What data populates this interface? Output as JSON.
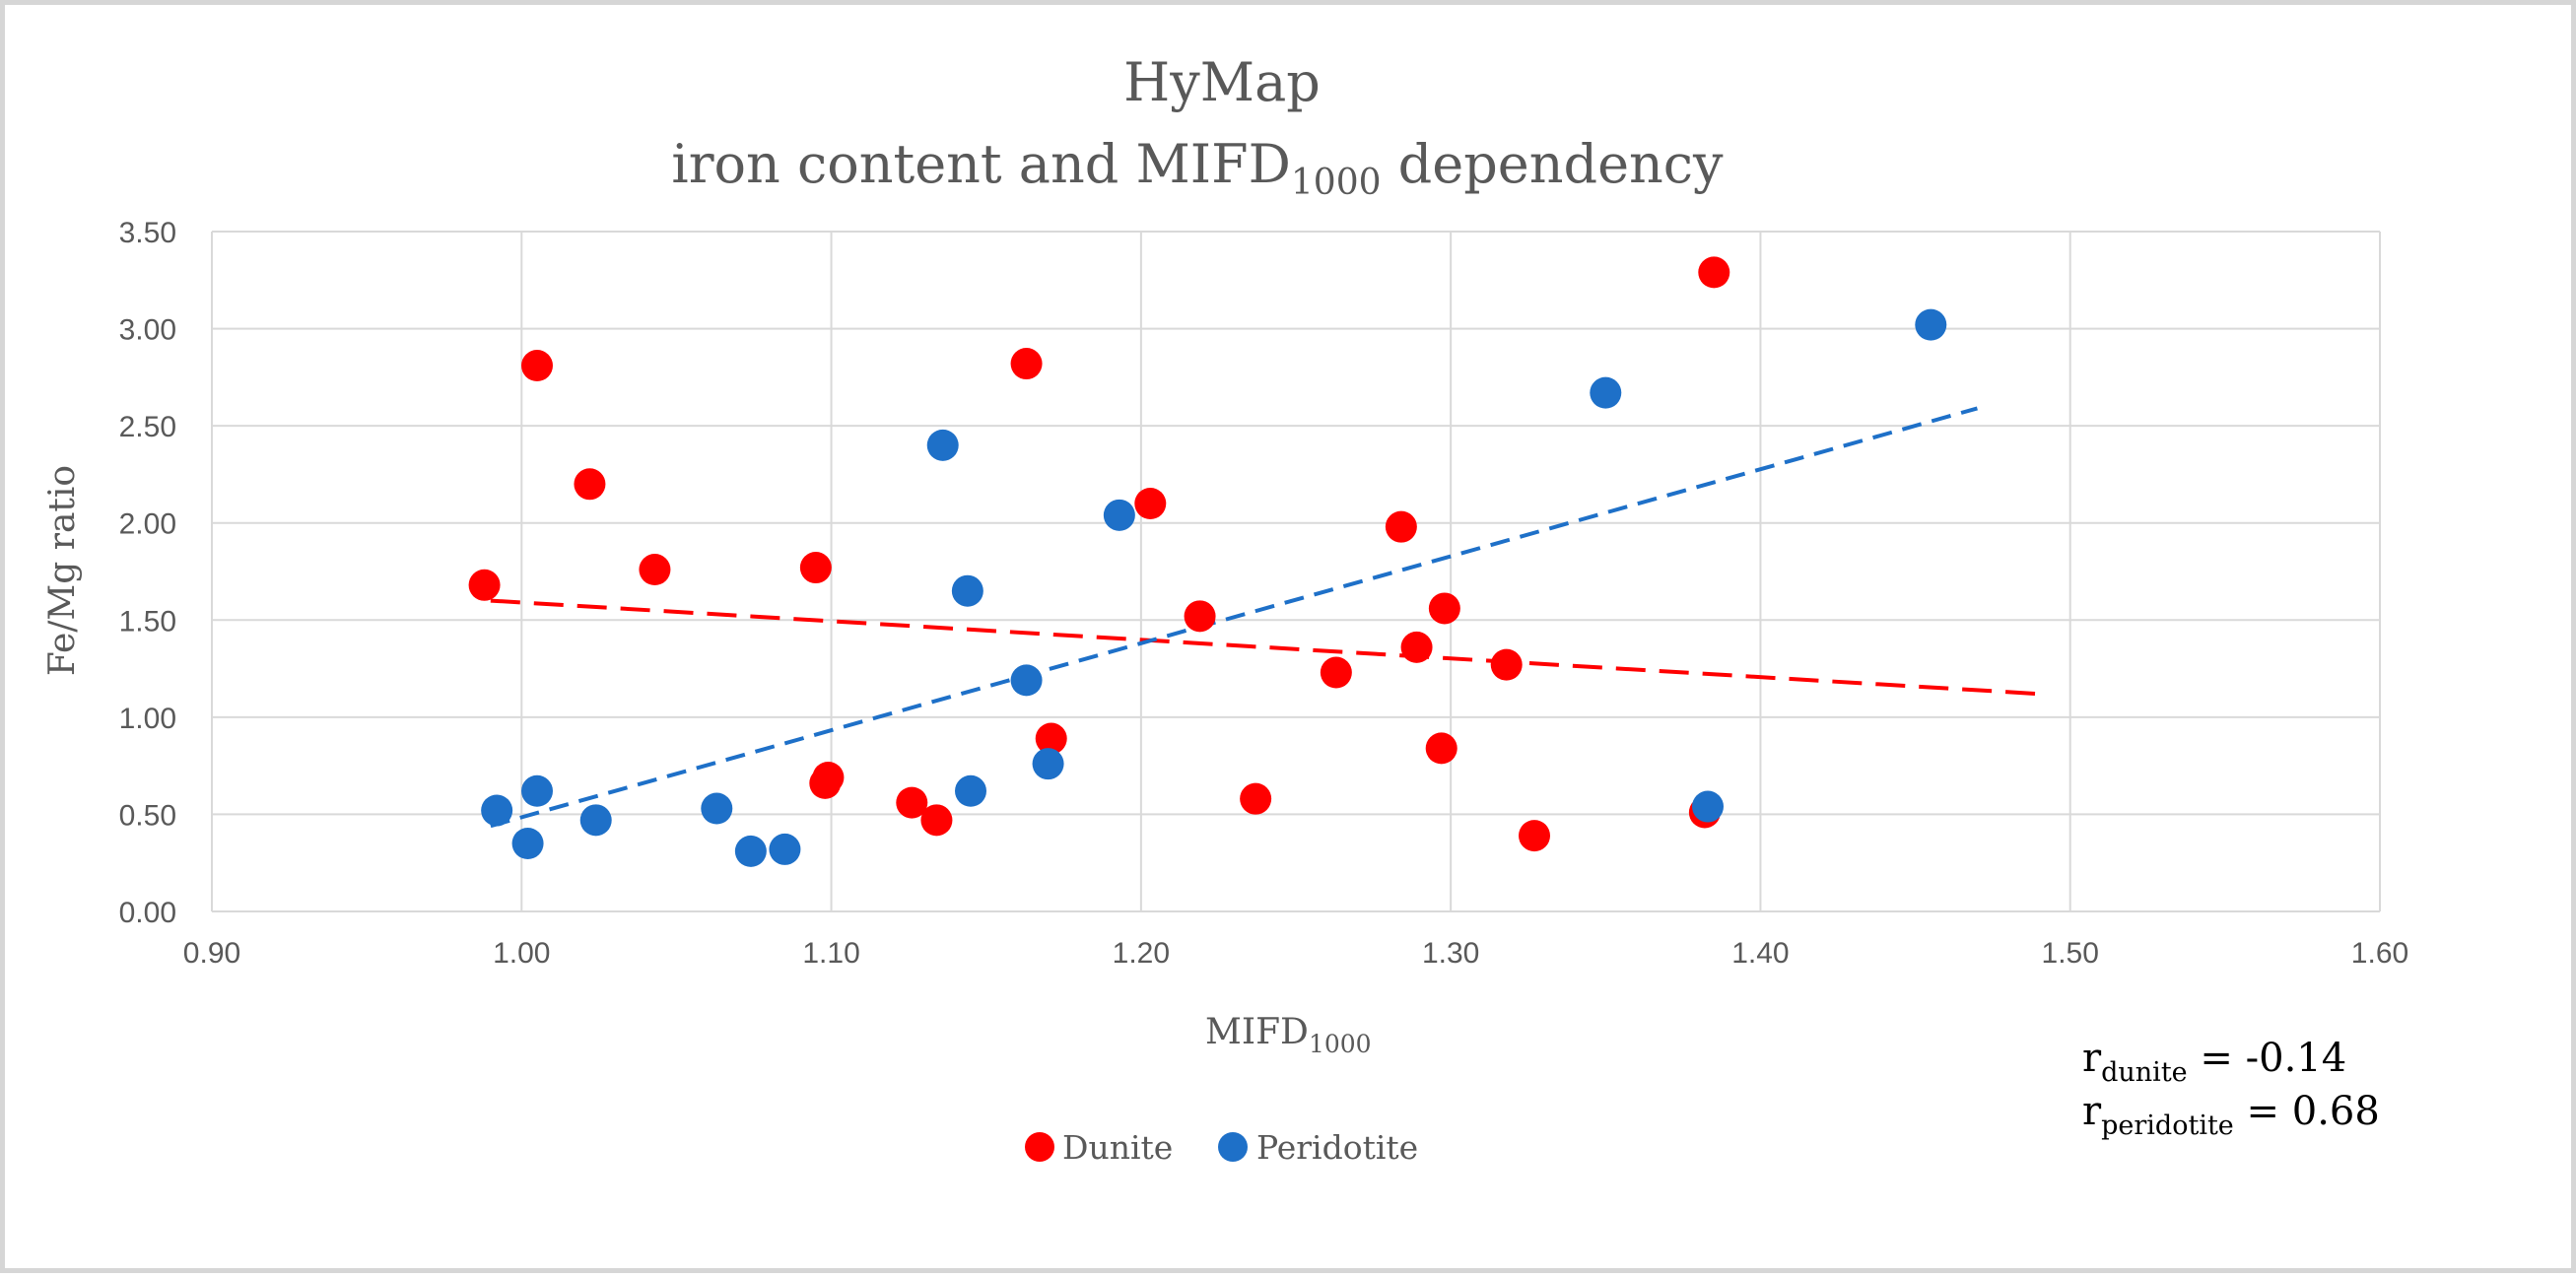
{
  "chart_data": {
    "type": "scatter",
    "title": {
      "line1": "HyMap",
      "line2_prefix": "iron content and MIFD",
      "line2_sub": "1000",
      "line2_suffix": " dependency"
    },
    "xlabel": {
      "main": "MIFD",
      "sub": "1000"
    },
    "ylabel": "Fe/Mg ratio",
    "xlim": [
      0.9,
      1.6
    ],
    "ylim": [
      0,
      3.5
    ],
    "x_ticks": [
      "0.90",
      "1.00",
      "1.10",
      "1.20",
      "1.30",
      "1.40",
      "1.50",
      "1.60"
    ],
    "y_ticks": [
      "0.00",
      "0.50",
      "1.00",
      "1.50",
      "2.00",
      "2.50",
      "3.00",
      "3.50"
    ],
    "grid": true,
    "legend_position": "bottom",
    "series": [
      {
        "name": "Dunite",
        "color": "#ff0000",
        "points": [
          [
            0.988,
            1.68
          ],
          [
            1.005,
            2.81
          ],
          [
            1.022,
            2.2
          ],
          [
            1.043,
            1.76
          ],
          [
            1.095,
            1.77
          ],
          [
            1.098,
            0.66
          ],
          [
            1.099,
            0.69
          ],
          [
            1.126,
            0.56
          ],
          [
            1.134,
            0.47
          ],
          [
            1.163,
            2.82
          ],
          [
            1.171,
            0.89
          ],
          [
            1.203,
            2.1
          ],
          [
            1.219,
            1.52
          ],
          [
            1.237,
            0.58
          ],
          [
            1.263,
            1.23
          ],
          [
            1.284,
            1.98
          ],
          [
            1.289,
            1.36
          ],
          [
            1.297,
            0.84
          ],
          [
            1.298,
            1.56
          ],
          [
            1.318,
            1.27
          ],
          [
            1.327,
            0.39
          ],
          [
            1.382,
            0.51
          ],
          [
            1.385,
            3.29
          ]
        ],
        "trendline": {
          "x": [
            0.99,
            1.49
          ],
          "y": [
            1.6,
            1.12
          ]
        }
      },
      {
        "name": "Peridotite",
        "color": "#1e70c8",
        "points": [
          [
            0.992,
            0.52
          ],
          [
            1.002,
            0.35
          ],
          [
            1.005,
            0.62
          ],
          [
            1.024,
            0.47
          ],
          [
            1.063,
            0.53
          ],
          [
            1.074,
            0.31
          ],
          [
            1.085,
            0.32
          ],
          [
            1.136,
            2.4
          ],
          [
            1.144,
            1.65
          ],
          [
            1.145,
            0.62
          ],
          [
            1.163,
            1.19
          ],
          [
            1.17,
            0.76
          ],
          [
            1.193,
            2.04
          ],
          [
            1.35,
            2.67
          ],
          [
            1.383,
            0.54
          ],
          [
            1.455,
            3.02
          ]
        ],
        "trendline": {
          "x": [
            0.99,
            1.47
          ],
          "y": [
            0.44,
            2.59
          ]
        }
      }
    ],
    "annotations": [
      {
        "prefix": "r",
        "sub": "dunite",
        "value": " = -0.14"
      },
      {
        "prefix": "r",
        "sub": "peridotite",
        "value": " = 0.68"
      }
    ]
  }
}
